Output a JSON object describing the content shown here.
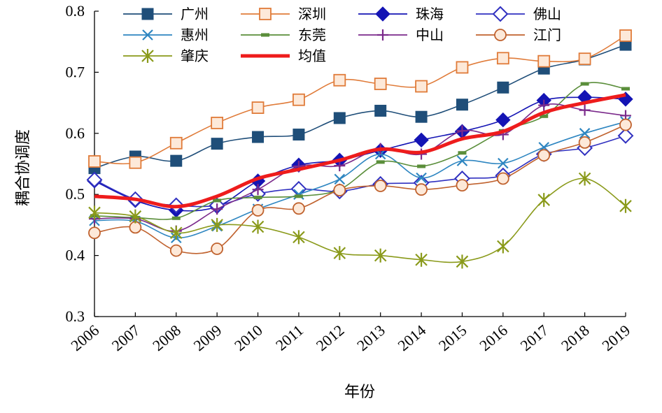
{
  "chart_data": {
    "type": "line",
    "title": "",
    "xlabel": "年份",
    "ylabel": "耦合协调度",
    "ylim": [
      0.3,
      0.8
    ],
    "yticks": [
      "0.3",
      "0.4",
      "0.5",
      "0.6",
      "0.7",
      "0.8"
    ],
    "categories": [
      "2006",
      "2007",
      "2008",
      "2009",
      "2010",
      "2011",
      "2012",
      "2013",
      "2014",
      "2015",
      "2016",
      "2017",
      "2018",
      "2019"
    ],
    "legend_position": "top",
    "series": [
      {
        "name": "广州",
        "color": "#1F4E79",
        "marker": "filled-square",
        "values": [
          0.543,
          0.562,
          0.555,
          0.583,
          0.594,
          0.598,
          0.625,
          0.637,
          0.627,
          0.647,
          0.675,
          0.706,
          0.721,
          0.745
        ]
      },
      {
        "name": "深圳",
        "color": "#E07B39",
        "marker": "hollow-square",
        "values": [
          0.554,
          0.552,
          0.584,
          0.617,
          0.642,
          0.655,
          0.687,
          0.681,
          0.677,
          0.708,
          0.723,
          0.718,
          0.722,
          0.76
        ]
      },
      {
        "name": "珠海",
        "color": "#1414B4",
        "marker": "filled-diamond",
        "values": [
          0.522,
          0.49,
          0.474,
          0.48,
          0.522,
          0.548,
          0.556,
          0.572,
          0.589,
          0.603,
          0.622,
          0.654,
          0.659,
          0.656
        ]
      },
      {
        "name": "佛山",
        "color": "#3030C0",
        "marker": "hollow-diamond",
        "values": [
          0.524,
          0.492,
          0.482,
          0.482,
          0.501,
          0.509,
          0.505,
          0.517,
          0.519,
          0.526,
          0.531,
          0.566,
          0.576,
          0.596
        ]
      },
      {
        "name": "惠州",
        "color": "#2E86C1",
        "marker": "x",
        "values": [
          0.457,
          0.456,
          0.429,
          0.448,
          0.476,
          0.5,
          0.525,
          0.566,
          0.527,
          0.555,
          0.551,
          0.577,
          0.6,
          0.619
        ]
      },
      {
        "name": "东莞",
        "color": "#5A8E3A",
        "marker": "dash",
        "values": [
          0.465,
          0.462,
          0.461,
          0.49,
          0.495,
          0.497,
          0.508,
          0.553,
          0.546,
          0.568,
          0.604,
          0.628,
          0.681,
          0.673
        ]
      },
      {
        "name": "中山",
        "color": "#7B2A8B",
        "marker": "plus",
        "values": [
          0.46,
          0.46,
          0.44,
          0.476,
          0.508,
          0.546,
          0.547,
          0.575,
          0.566,
          0.604,
          0.598,
          0.646,
          0.638,
          0.629
        ]
      },
      {
        "name": "江门",
        "color": "#C0622E",
        "marker": "hollow-circle",
        "values": [
          0.437,
          0.446,
          0.408,
          0.411,
          0.474,
          0.477,
          0.507,
          0.514,
          0.508,
          0.515,
          0.526,
          0.564,
          0.585,
          0.614
        ]
      },
      {
        "name": "肇庆",
        "color": "#8A9A1A",
        "marker": "asterisk",
        "values": [
          0.47,
          0.464,
          0.437,
          0.45,
          0.447,
          0.43,
          0.404,
          0.4,
          0.393,
          0.39,
          0.415,
          0.491,
          0.526,
          0.481
        ]
      },
      {
        "name": "均值",
        "color": "#EE1C1C",
        "marker": "none",
        "thick": true,
        "values": [
          0.497,
          0.492,
          0.48,
          0.497,
          0.526,
          0.541,
          0.556,
          0.574,
          0.569,
          0.591,
          0.603,
          0.634,
          0.65,
          0.663
        ]
      }
    ]
  }
}
